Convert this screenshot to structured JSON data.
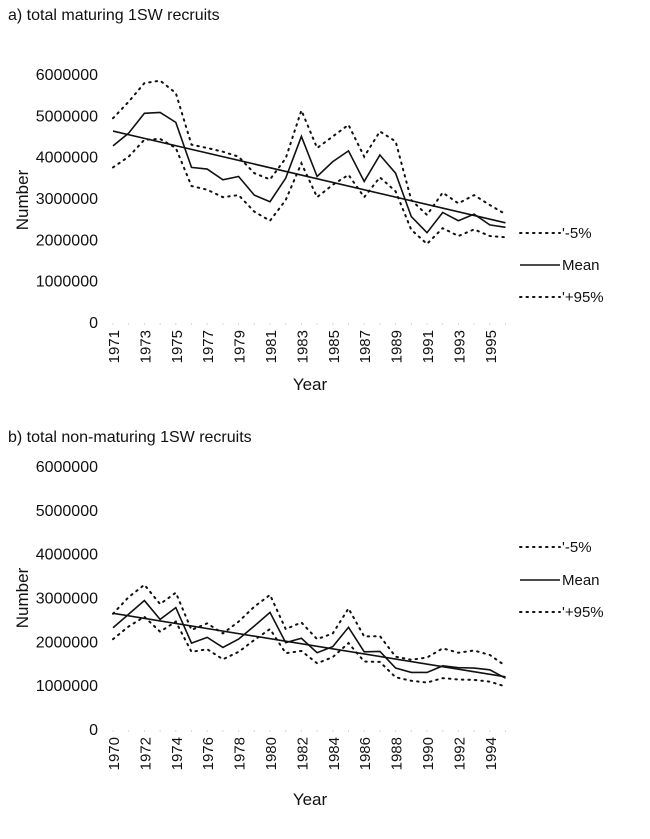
{
  "chart_data": [
    {
      "type": "line",
      "title": "a)  total maturing 1SW recruits",
      "xlabel": "Year",
      "ylabel": "Number",
      "ylim": [
        0,
        6000000
      ],
      "yticks": [
        "0",
        "1000000",
        "2000000",
        "3000000",
        "4000000",
        "5000000",
        "6000000"
      ],
      "x": [
        1971,
        1972,
        1973,
        1974,
        1975,
        1976,
        1977,
        1978,
        1979,
        1980,
        1981,
        1982,
        1983,
        1984,
        1985,
        1986,
        1987,
        1988,
        1989,
        1990,
        1991,
        1992,
        1993,
        1994,
        1995,
        1996
      ],
      "xticks": [
        "1971",
        "1973",
        "1975",
        "1977",
        "1979",
        "1981",
        "1983",
        "1985",
        "1987",
        "1989",
        "1991",
        "1993",
        "1995"
      ],
      "grid": false,
      "legend_placement": "right",
      "series": [
        {
          "name": "'-5%",
          "style": "dotted",
          "values": [
            4930000,
            5330000,
            5780000,
            5840000,
            5540000,
            4290000,
            4210000,
            4120000,
            4000000,
            3600000,
            3450000,
            3960000,
            5120000,
            4210000,
            4490000,
            4770000,
            4000000,
            4610000,
            4370000,
            2950000,
            2590000,
            3130000,
            2870000,
            3070000,
            2830000,
            2610000
          ]
        },
        {
          "name": "Mean",
          "style": "solid",
          "values": [
            4260000,
            4570000,
            5050000,
            5070000,
            4830000,
            3740000,
            3700000,
            3440000,
            3520000,
            3070000,
            2910000,
            3480000,
            4490000,
            3520000,
            3880000,
            4140000,
            3400000,
            4040000,
            3600000,
            2550000,
            2160000,
            2650000,
            2450000,
            2610000,
            2350000,
            2290000
          ]
        },
        {
          "name": "'+95%",
          "style": "dotted",
          "values": [
            3740000,
            4000000,
            4410000,
            4430000,
            4210000,
            3290000,
            3200000,
            3020000,
            3070000,
            2670000,
            2450000,
            2950000,
            3840000,
            3020000,
            3320000,
            3560000,
            3020000,
            3500000,
            3160000,
            2230000,
            1890000,
            2270000,
            2080000,
            2240000,
            2080000,
            2050000
          ]
        }
      ],
      "trend": {
        "start": 4620000,
        "end": 2400000
      }
    },
    {
      "type": "line",
      "title": "b)  total non-maturing 1SW recruits",
      "xlabel": "Year",
      "ylabel": "Number",
      "ylim": [
        0,
        6000000
      ],
      "yticks": [
        "0",
        "1000000",
        "2000000",
        "3000000",
        "4000000",
        "5000000",
        "6000000"
      ],
      "x": [
        1970,
        1971,
        1972,
        1973,
        1974,
        1975,
        1976,
        1977,
        1978,
        1979,
        1980,
        1981,
        1982,
        1983,
        1984,
        1985,
        1986,
        1987,
        1988,
        1989,
        1990,
        1991,
        1992,
        1993,
        1994,
        1995
      ],
      "xticks": [
        "1970",
        "1972",
        "1974",
        "1976",
        "1978",
        "1980",
        "1982",
        "1984",
        "1986",
        "1988",
        "1990",
        "1992",
        "1994"
      ],
      "grid": false,
      "legend_placement": "right",
      "series": [
        {
          "name": "'-5%",
          "style": "dotted",
          "values": [
            2630000,
            3010000,
            3290000,
            2850000,
            3110000,
            2260000,
            2410000,
            2180000,
            2450000,
            2790000,
            3060000,
            2280000,
            2430000,
            2050000,
            2180000,
            2750000,
            2110000,
            2120000,
            1650000,
            1580000,
            1630000,
            1840000,
            1740000,
            1790000,
            1690000,
            1440000
          ]
        },
        {
          "name": "Mean",
          "style": "solid",
          "values": [
            2310000,
            2620000,
            2930000,
            2500000,
            2770000,
            1960000,
            2090000,
            1860000,
            2050000,
            2350000,
            2660000,
            1970000,
            2070000,
            1740000,
            1880000,
            2320000,
            1760000,
            1770000,
            1390000,
            1290000,
            1290000,
            1440000,
            1400000,
            1390000,
            1350000,
            1160000
          ]
        },
        {
          "name": "'+95%",
          "style": "dotted",
          "values": [
            2050000,
            2340000,
            2560000,
            2220000,
            2450000,
            1760000,
            1820000,
            1590000,
            1760000,
            2030000,
            2280000,
            1730000,
            1780000,
            1500000,
            1640000,
            1960000,
            1540000,
            1530000,
            1180000,
            1100000,
            1060000,
            1160000,
            1130000,
            1120000,
            1080000,
            970000
          ]
        }
      ],
      "trend": {
        "start": 2640000,
        "end": 1190000
      }
    }
  ]
}
